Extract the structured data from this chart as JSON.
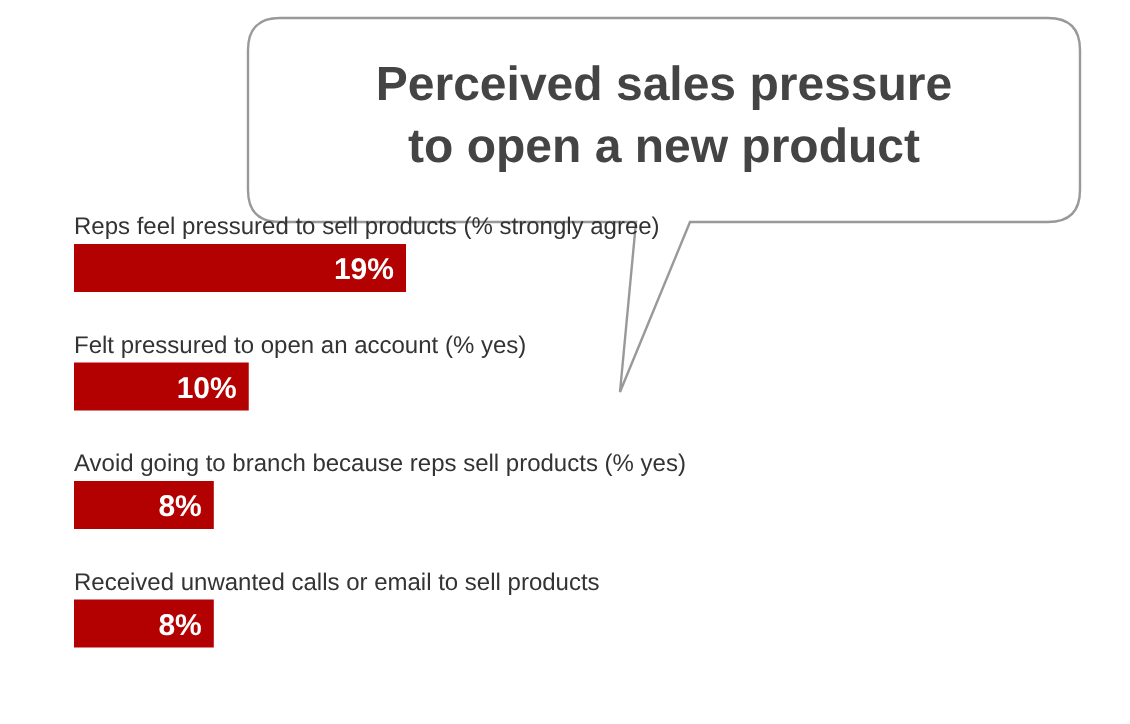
{
  "chart_data": {
    "type": "bar",
    "orientation": "horizontal",
    "title": "Perceived sales pressure to open a new product",
    "categories": [
      "Reps feel pressured to sell products (% strongly agree)",
      "Felt pressured to open an account (% yes)",
      "Avoid going to branch because reps sell products (% yes)",
      "Received unwanted calls or email to sell products"
    ],
    "values": [
      19,
      10,
      8,
      8
    ],
    "color": "#b30000",
    "value_labels": [
      "19%",
      "10%",
      "8%",
      "8%"
    ]
  }
}
